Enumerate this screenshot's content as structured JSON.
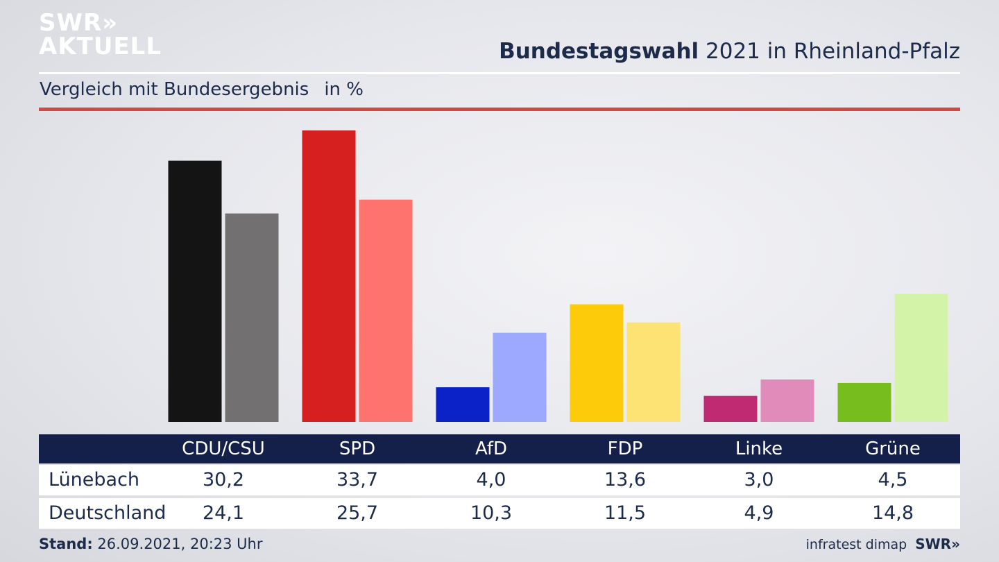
{
  "logo": {
    "line1": "SWR»",
    "line2": "AKTUELL"
  },
  "header": {
    "title_bold": "Bundestagswahl",
    "title_rest": " 2021 in Rheinland-Pfalz"
  },
  "subtitle": {
    "text": "Vergleich mit Bundesergebnis",
    "unit": "in %"
  },
  "table": {
    "rows": [
      {
        "label": "Lünebach",
        "values": [
          "30,2",
          "33,7",
          "4,0",
          "13,6",
          "3,0",
          "4,5"
        ]
      },
      {
        "label": "Deutschland",
        "values": [
          "24,1",
          "25,7",
          "10,3",
          "11,5",
          "4,9",
          "14,8"
        ]
      }
    ]
  },
  "chart_data": {
    "type": "bar",
    "categories": [
      "CDU/CSU",
      "SPD",
      "AfD",
      "FDP",
      "Linke",
      "Grüne"
    ],
    "series": [
      {
        "name": "Lünebach",
        "values": [
          30.2,
          33.7,
          4.0,
          13.6,
          3.0,
          4.5
        ],
        "colors": [
          "#141414",
          "#d61f1f",
          "#0a22c8",
          "#fdcb0a",
          "#bf2a73",
          "#77bd1e"
        ]
      },
      {
        "name": "Deutschland",
        "values": [
          24.1,
          25.7,
          10.3,
          11.5,
          4.9,
          14.8
        ],
        "colors": [
          "#727070",
          "#fe736d",
          "#9ca9ff",
          "#fde274",
          "#e08bb9",
          "#d3f4a8"
        ]
      }
    ],
    "ylim": [
      0,
      33.7
    ],
    "grid": false,
    "legend": "none"
  },
  "footer": {
    "stand_label": "Stand:",
    "stand_value": " 26.09.2021, 20:23 Uhr",
    "source": "infratest dimap",
    "brand": "SWR»"
  }
}
